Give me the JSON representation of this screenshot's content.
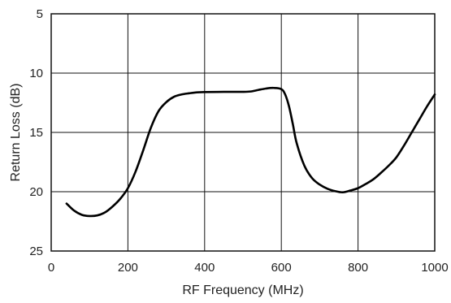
{
  "chart_data": {
    "type": "line",
    "title": "",
    "xlabel": "RF Frequency (MHz)",
    "ylabel": "Return Loss (dB)",
    "xlim": [
      0,
      1000
    ],
    "ylim": [
      5,
      25
    ],
    "y_inverted": true,
    "grid": true,
    "x_ticks": [
      "0",
      "200",
      "400",
      "600",
      "800",
      "1000"
    ],
    "y_ticks": [
      "5",
      "10",
      "15",
      "20",
      "25"
    ],
    "series": [
      {
        "x": [
          40,
          60,
          80,
          100,
          120,
          140,
          160,
          180,
          200,
          220,
          240,
          260,
          280,
          300,
          320,
          340,
          360,
          380,
          400,
          450,
          500,
          520,
          540,
          560,
          580,
          600,
          610,
          620,
          630,
          640,
          660,
          680,
          700,
          720,
          740,
          760,
          780,
          800,
          820,
          840,
          860,
          880,
          900,
          920,
          940,
          960,
          980,
          1000
        ],
        "y": [
          21.0,
          21.6,
          21.95,
          22.05,
          22.0,
          21.75,
          21.25,
          20.6,
          19.7,
          18.3,
          16.5,
          14.6,
          13.2,
          12.45,
          12.0,
          11.8,
          11.7,
          11.62,
          11.6,
          11.58,
          11.58,
          11.55,
          11.42,
          11.3,
          11.25,
          11.35,
          11.8,
          12.8,
          14.3,
          15.9,
          17.8,
          18.85,
          19.4,
          19.75,
          19.95,
          20.05,
          19.9,
          19.7,
          19.35,
          18.95,
          18.4,
          17.8,
          17.1,
          16.1,
          15.0,
          13.9,
          12.8,
          11.8
        ]
      }
    ]
  }
}
